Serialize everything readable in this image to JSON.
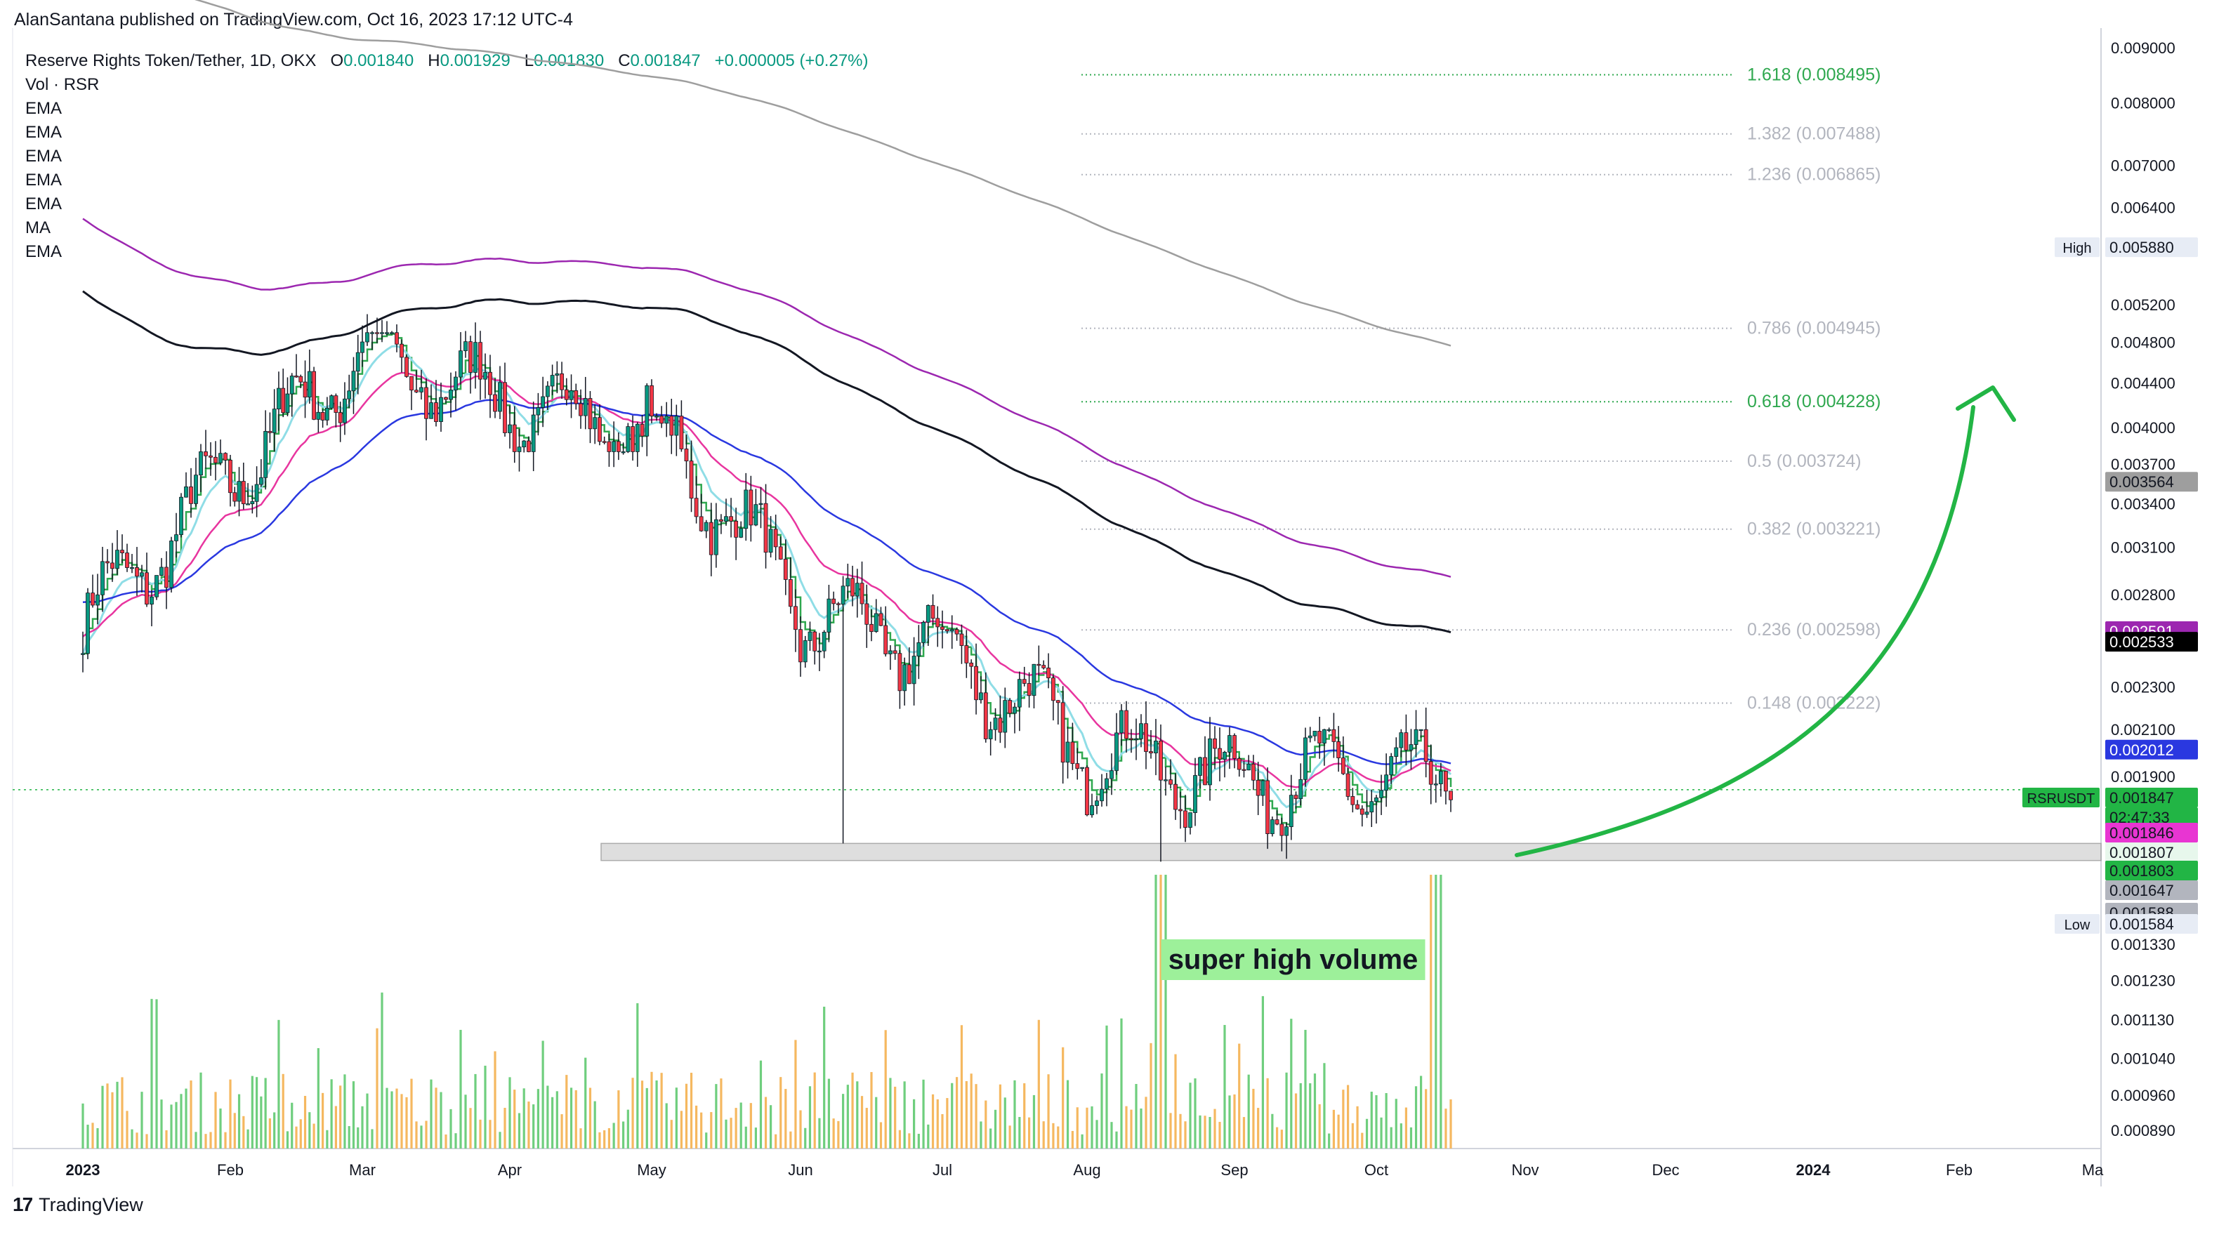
{
  "header": {
    "publish_line": "AlanSantana published on TradingView.com, Oct 16, 2023 17:12 UTC-4"
  },
  "legend": {
    "title": "Reserve Rights Token/Tether, 1D, OKX",
    "ohlc": {
      "o_label": "O",
      "o_value": "0.001840",
      "h_label": "H",
      "h_value": "0.001929",
      "l_label": "L",
      "l_value": "0.001830",
      "c_label": "C",
      "c_value": "0.001847",
      "change": "+0.000005 (+0.27%)"
    },
    "indicators": [
      "Vol · RSR",
      "EMA",
      "EMA",
      "EMA",
      "EMA",
      "EMA",
      "MA",
      "EMA"
    ]
  },
  "footer": {
    "brand_logo": "17",
    "brand_name": "TradingView"
  },
  "colors": {
    "up": "#089981",
    "down": "#f23645",
    "ema_green": "#2fa84f",
    "ema_cyan": "#8fdde6",
    "ema_magenta": "#e8359f",
    "ema_blue": "#2a38e0",
    "ema_purple": "#9c27b0",
    "ma_black": "#131722",
    "ema_gray": "#9e9e9e",
    "arrow": "#22b545",
    "vol_up": "#6fce7e",
    "vol_down": "#f5b860"
  },
  "chart_data": {
    "type": "candlestick",
    "symbol": "RSRUSDT",
    "x_ticks": [
      "2023",
      "Feb",
      "Mar",
      "Apr",
      "May",
      "Jun",
      "Jul",
      "Aug",
      "Sep",
      "Oct",
      "Nov",
      "Dec",
      "2024",
      "Feb",
      "Ma"
    ],
    "y_scale": "log",
    "y_ticks": [
      "0.009000",
      "0.008000",
      "0.007000",
      "0.006400",
      "0.005200",
      "0.004800",
      "0.004400",
      "0.004000",
      "0.003700",
      "0.003400",
      "0.003100",
      "0.002800",
      "0.002300",
      "0.002100",
      "0.001900",
      "0.001330",
      "0.001230",
      "0.001130",
      "0.001040",
      "0.000960",
      "0.000890"
    ],
    "y_tick_values": [
      0.009,
      0.008,
      0.007,
      0.0064,
      0.0052,
      0.0048,
      0.0044,
      0.004,
      0.0037,
      0.0034,
      0.0031,
      0.0028,
      0.0023,
      0.0021,
      0.0019,
      0.00133,
      0.00123,
      0.00113,
      0.00104,
      0.00096,
      0.00089
    ],
    "fib_levels": [
      {
        "label": "1.618 (0.008495)",
        "value": 0.008495,
        "color": "#2fa84f"
      },
      {
        "label": "1.382 (0.007488)",
        "value": 0.007488,
        "color": "#b2b5be"
      },
      {
        "label": "1.236 (0.006865)",
        "value": 0.006865,
        "color": "#b2b5be"
      },
      {
        "label": "0.786 (0.004945)",
        "value": 0.004945,
        "color": "#b2b5be"
      },
      {
        "label": "0.618 (0.004228)",
        "value": 0.004228,
        "color": "#2fa84f"
      },
      {
        "label": "0.5 (0.003724)",
        "value": 0.003724,
        "color": "#b2b5be"
      },
      {
        "label": "0.382 (0.003221)",
        "value": 0.003221,
        "color": "#b2b5be"
      },
      {
        "label": "0.236 (0.002598)",
        "value": 0.002598,
        "color": "#b2b5be"
      },
      {
        "label": "0.148 (0.002222)",
        "value": 0.002222,
        "color": "#b2b5be"
      }
    ],
    "price_tags": [
      {
        "label": "",
        "text": "0.005880",
        "value": 0.00588,
        "bg": "#e7ecf5",
        "fg": "#131722",
        "prefix": "High"
      },
      {
        "label": "",
        "text": "0.003564",
        "value": 0.003564,
        "bg": "#9e9e9e",
        "fg": "#131722"
      },
      {
        "label": "",
        "text": "0.002591",
        "value": 0.002591,
        "bg": "#9c27b0",
        "fg": "#ffffff"
      },
      {
        "label": "",
        "text": "0.002533",
        "value": 0.002533,
        "bg": "#000000",
        "fg": "#ffffff"
      },
      {
        "label": "",
        "text": "0.002012",
        "value": 0.002012,
        "bg": "#2a38e0",
        "fg": "#ffffff"
      },
      {
        "label": "RSRUSDT",
        "text": "0.001847",
        "value": 0.001847,
        "bg": "#22b545",
        "fg": "#131722",
        "sub": "02:47:33"
      },
      {
        "label": "",
        "text": "0.001846",
        "value": 0.001846,
        "bg": "#e835d2",
        "fg": "#131722"
      },
      {
        "label": "",
        "text": "0.001807",
        "value": 0.001807,
        "bg": "#e7f7ec",
        "fg": "#131722"
      },
      {
        "label": "",
        "text": "0.001803",
        "value": 0.001803,
        "bg": "#22b545",
        "fg": "#131722"
      },
      {
        "label": "",
        "text": "0.001647",
        "value": 0.001647,
        "bg": "#b2b5be",
        "fg": "#131722"
      },
      {
        "label": "",
        "text": "0.001588",
        "value": 0.001588,
        "bg": "#b2b5be",
        "fg": "#131722"
      },
      {
        "label": "",
        "text": "0.001584",
        "value": 0.001584,
        "bg": "#e7ecf5",
        "fg": "#131722",
        "prefix": "Low"
      }
    ],
    "ohlc_monthly_approx": [
      {
        "month": "Jan 2023",
        "open": 0.0026,
        "high": 0.0038,
        "low": 0.0024,
        "close": 0.0036
      },
      {
        "month": "Feb 2023",
        "open": 0.0036,
        "high": 0.00588,
        "low": 0.0034,
        "close": 0.0047
      },
      {
        "month": "Mar 2023",
        "open": 0.0047,
        "high": 0.0049,
        "low": 0.0034,
        "close": 0.0042
      },
      {
        "month": "Apr 2023",
        "open": 0.0042,
        "high": 0.0048,
        "low": 0.0038,
        "close": 0.004
      },
      {
        "month": "May 2023",
        "open": 0.004,
        "high": 0.0041,
        "low": 0.0026,
        "close": 0.0027
      },
      {
        "month": "Jun 2023",
        "open": 0.0027,
        "high": 0.0029,
        "low": 0.001647,
        "close": 0.0025
      },
      {
        "month": "Jul 2023",
        "open": 0.0025,
        "high": 0.0026,
        "low": 0.0019,
        "close": 0.002
      },
      {
        "month": "Aug 2023",
        "open": 0.002,
        "high": 0.00225,
        "low": 0.001584,
        "close": 0.0019
      },
      {
        "month": "Sep 2023",
        "open": 0.0019,
        "high": 0.0021,
        "low": 0.00165,
        "close": 0.0019
      },
      {
        "month": "Oct 2023",
        "open": 0.0019,
        "high": 0.0021,
        "low": 0.00166,
        "close": 0.001847
      }
    ],
    "volume_spikes": [
      "Aug 2023",
      "Oct 2023"
    ],
    "support_zone": [
      0.001588,
      0.001647
    ],
    "annotation": "super high volume",
    "series": [
      {
        "name": "EMA",
        "color": "#2fa84f"
      },
      {
        "name": "EMA",
        "color": "#8fdde6"
      },
      {
        "name": "EMA",
        "color": "#e8359f"
      },
      {
        "name": "EMA",
        "color": "#2a38e0"
      },
      {
        "name": "EMA",
        "color": "#9c27b0"
      },
      {
        "name": "MA",
        "color": "#131722"
      },
      {
        "name": "EMA",
        "color": "#9e9e9e"
      }
    ]
  }
}
